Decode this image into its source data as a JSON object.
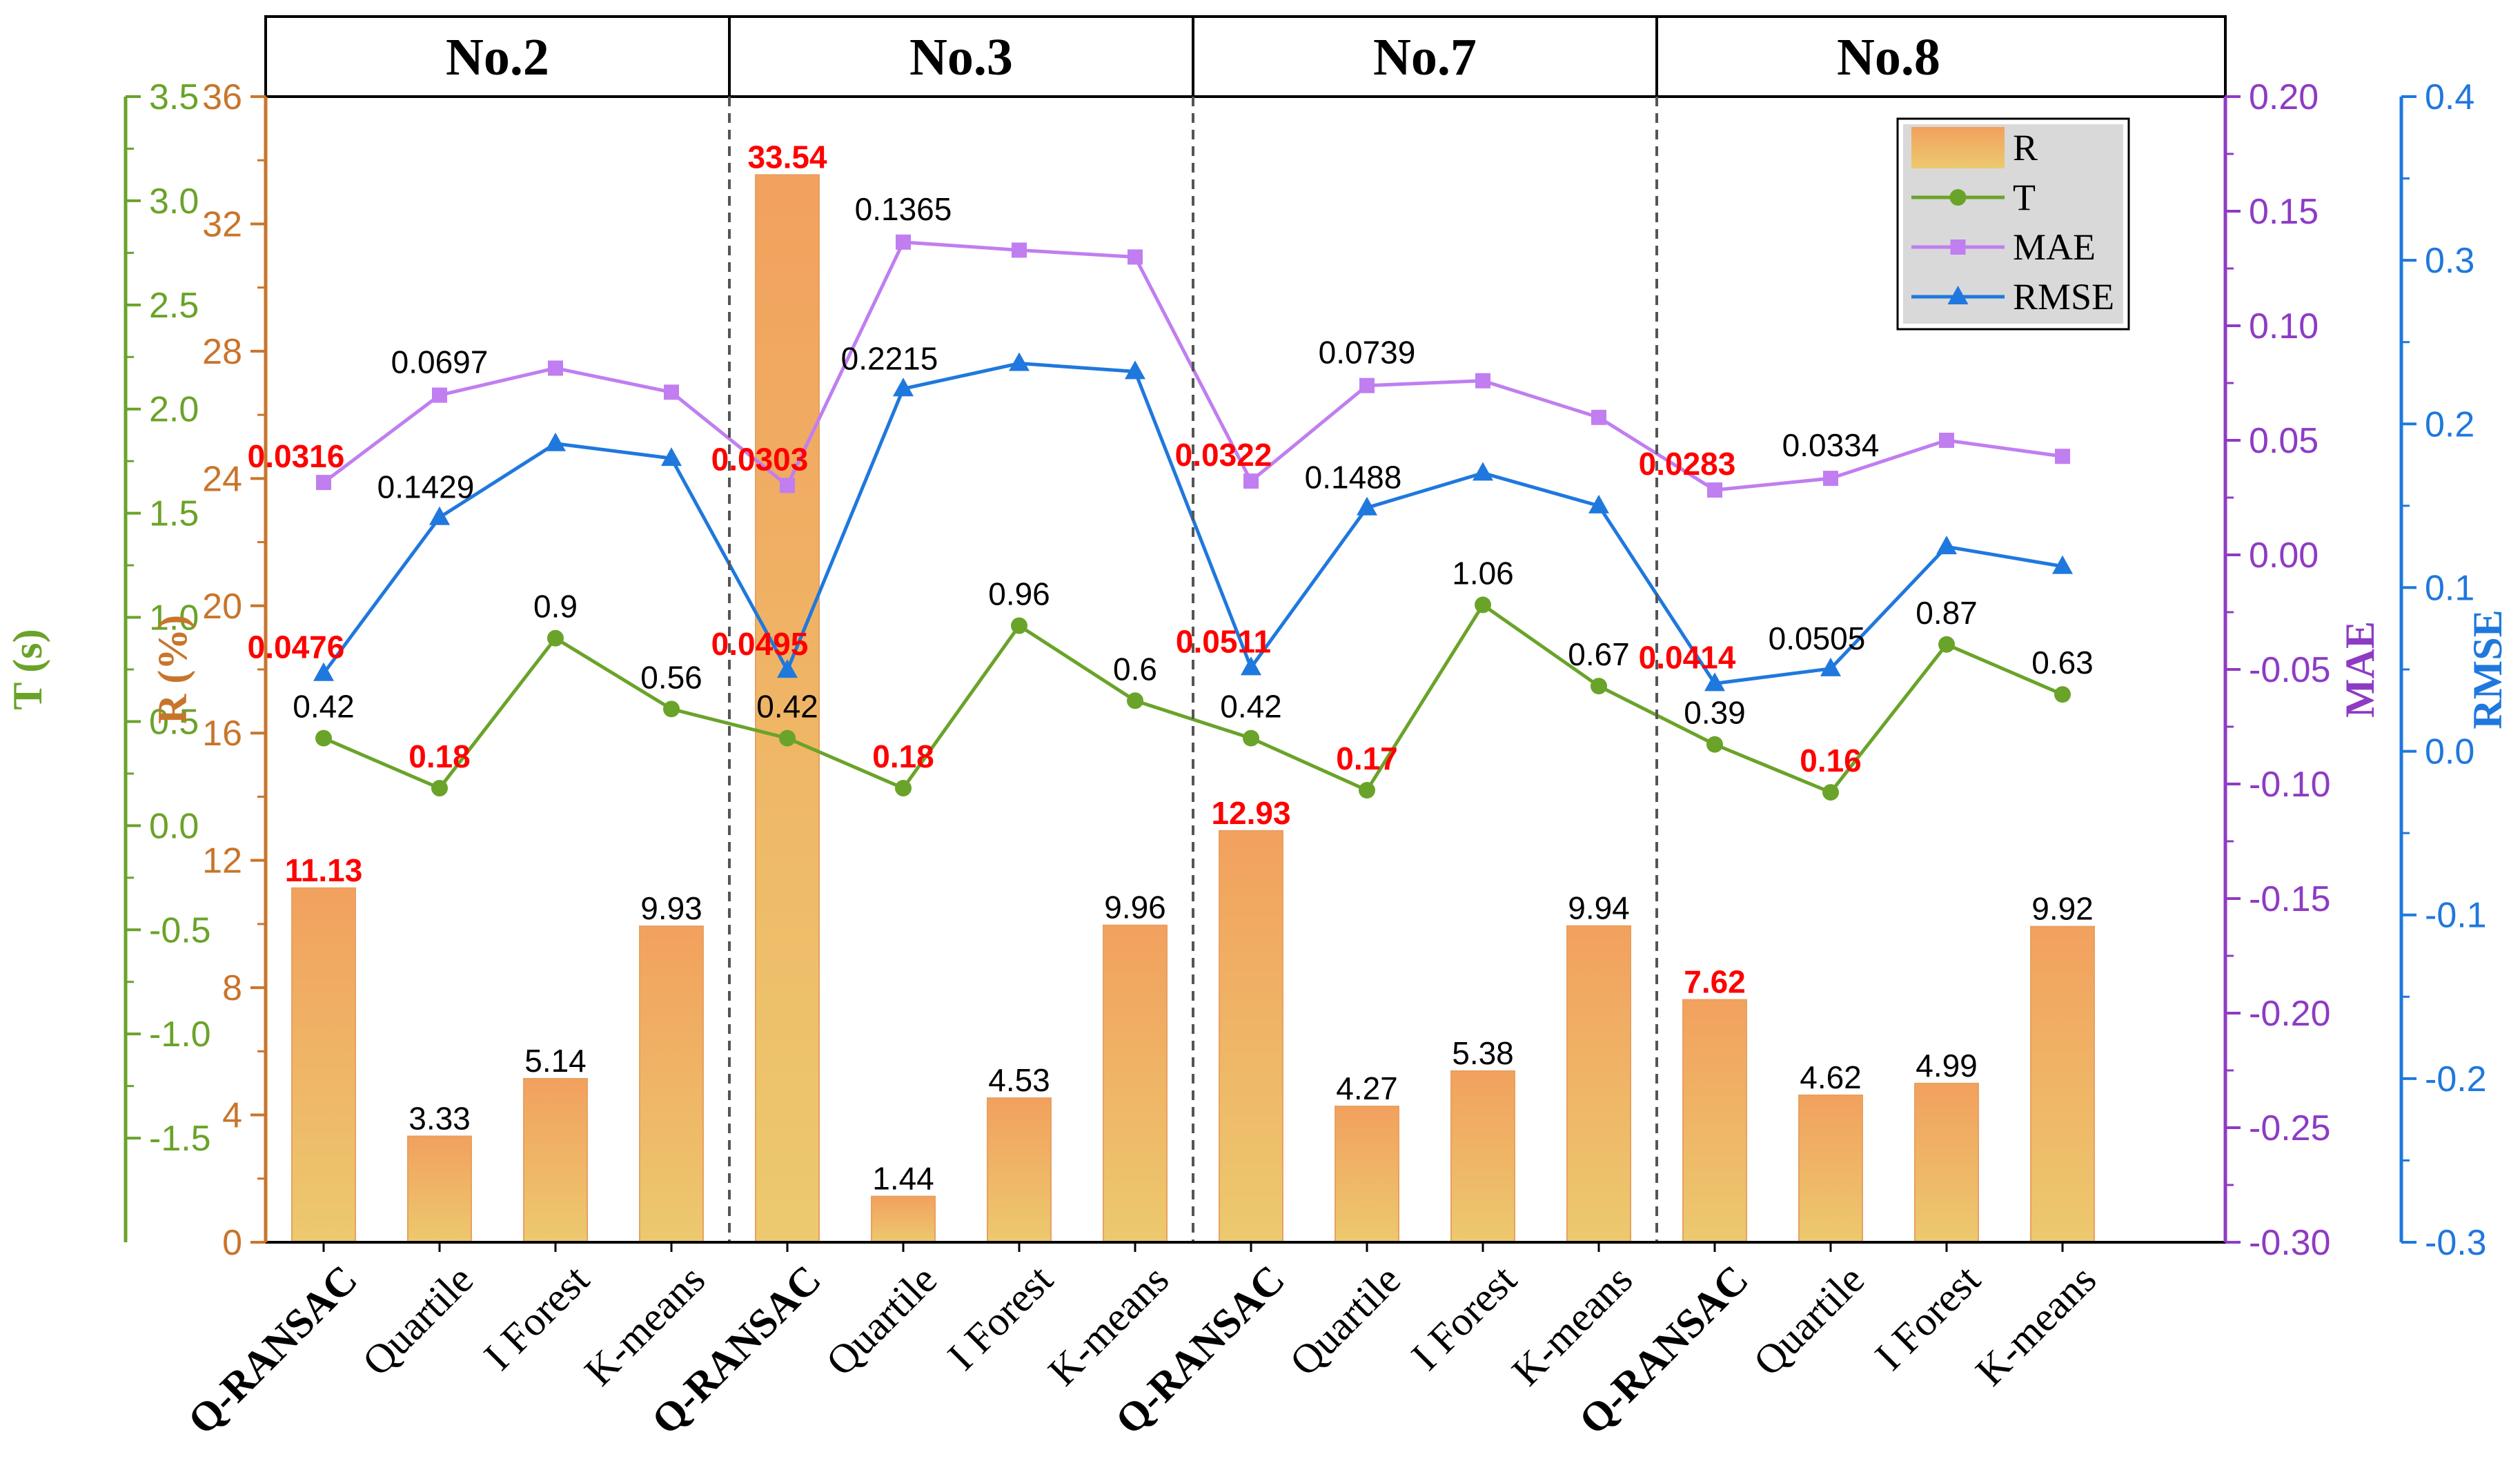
{
  "chart_data": {
    "type": "bar",
    "groups": [
      "No.2",
      "No.3",
      "No.7",
      "No.8"
    ],
    "methods": [
      "Q-RANSAC",
      "Quartile",
      "I Forest",
      "K-means"
    ],
    "series": [
      {
        "name": "R",
        "kind": "bar",
        "axis": "R",
        "color": "#f2a65e",
        "values": [
          11.13,
          3.33,
          5.14,
          9.93,
          33.54,
          1.44,
          4.53,
          9.96,
          12.93,
          4.27,
          5.38,
          9.94,
          7.62,
          4.62,
          4.99,
          9.92
        ],
        "labels": [
          "11.13",
          "3.33",
          "5.14",
          "9.93",
          "33.54",
          "1.44",
          "4.53",
          "9.96",
          "12.93",
          "4.27",
          "5.38",
          "9.94",
          "7.62",
          "4.62",
          "4.99",
          "9.92"
        ]
      },
      {
        "name": "T",
        "kind": "line",
        "axis": "T",
        "color": "#6aa329",
        "marker": "circle",
        "values": [
          0.42,
          0.18,
          0.9,
          0.56,
          0.42,
          0.18,
          0.96,
          0.6,
          0.42,
          0.17,
          1.06,
          0.67,
          0.39,
          0.16,
          0.87,
          0.63
        ],
        "labels": [
          "0.42",
          "0.18",
          "0.9",
          "0.56",
          "0.42",
          "0.18",
          "0.96",
          "0.6",
          "0.42",
          "0.17",
          "1.06",
          "0.67",
          "0.39",
          "0.16",
          "0.87",
          "0.63"
        ],
        "label_index": [
          0,
          1,
          2,
          3,
          4,
          5,
          6,
          7,
          8,
          9,
          10,
          11,
          12,
          13,
          14,
          15
        ]
      },
      {
        "name": "MAE",
        "kind": "line",
        "axis": "MAE",
        "color": "#c07ef0",
        "marker": "square",
        "values": [
          0.0316,
          0.0697,
          0.0815,
          0.071,
          0.0303,
          0.1365,
          0.133,
          0.13,
          0.0322,
          0.0739,
          0.076,
          0.06,
          0.0283,
          0.0334,
          0.05,
          0.043
        ],
        "labels": [
          "0.0316",
          "0.0697",
          "0.0303",
          "0.1365",
          "0.0322",
          "0.0739",
          "0.0283",
          "0.0334"
        ],
        "label_index": [
          0,
          1,
          4,
          5,
          8,
          9,
          12,
          13
        ]
      },
      {
        "name": "RMSE",
        "kind": "line",
        "axis": "RMSE",
        "color": "#1f78dd",
        "marker": "triangle",
        "values": [
          0.0476,
          0.1429,
          0.188,
          0.179,
          0.0495,
          0.2215,
          0.237,
          0.232,
          0.0511,
          0.1488,
          0.17,
          0.15,
          0.0414,
          0.0505,
          0.125,
          0.113
        ],
        "labels": [
          "0.0476",
          "0.1429",
          "0.0495",
          "0.2215",
          "0.0511",
          "0.1488",
          "0.0414",
          "0.0505"
        ],
        "label_index": [
          0,
          1,
          4,
          5,
          8,
          9,
          12,
          13
        ]
      }
    ],
    "highlight_color": "#ff0000",
    "highlight_labels": {
      "R": [
        0,
        4,
        8,
        12
      ],
      "T": [
        1,
        5,
        9,
        13
      ],
      "MAE": [
        0,
        4,
        8,
        12
      ],
      "RMSE": [
        0,
        4,
        8,
        12
      ]
    },
    "axes": {
      "T": {
        "label": "T (s)",
        "color": "#6aa329",
        "min": -2.0,
        "max": 3.5,
        "ticks": [
          "-1.5",
          "-1.0",
          "-0.5",
          "0.0",
          "0.5",
          "1.0",
          "1.5",
          "2.0",
          "2.5",
          "3.0",
          "3.5"
        ],
        "tick_values": [
          -1.5,
          -1.0,
          -0.5,
          0.0,
          0.5,
          1.0,
          1.5,
          2.0,
          2.5,
          3.0,
          3.5
        ]
      },
      "R": {
        "label": "R (%)",
        "color": "#c8752b",
        "min": 0,
        "max": 36,
        "ticks": [
          "0",
          "4",
          "8",
          "12",
          "16",
          "20",
          "24",
          "28",
          "32",
          "36"
        ],
        "tick_values": [
          0,
          4,
          8,
          12,
          16,
          20,
          24,
          28,
          32,
          36
        ]
      },
      "MAE": {
        "label": "MAE",
        "color": "#8e3bc4",
        "min": -0.3,
        "max": 0.2,
        "ticks": [
          "-0.30",
          "-0.25",
          "-0.20",
          "-0.15",
          "-0.10",
          "-0.05",
          "0.00",
          "0.05",
          "0.10",
          "0.15",
          "0.20"
        ],
        "tick_values": [
          -0.3,
          -0.25,
          -0.2,
          -0.15,
          -0.1,
          -0.05,
          0.0,
          0.05,
          0.1,
          0.15,
          0.2
        ]
      },
      "RMSE": {
        "label": "RMSE",
        "color": "#1f78dd",
        "min": -0.3,
        "max": 0.4,
        "ticks": [
          "-0.3",
          "-0.2",
          "-0.1",
          "0.0",
          "0.1",
          "0.2",
          "0.3",
          "0.4"
        ],
        "tick_values": [
          -0.3,
          -0.2,
          -0.1,
          0.0,
          0.1,
          0.2,
          0.3,
          0.4
        ]
      }
    },
    "legend": {
      "position": "top-right",
      "entries": [
        "R",
        "T",
        "MAE",
        "RMSE"
      ]
    },
    "grid": false
  }
}
